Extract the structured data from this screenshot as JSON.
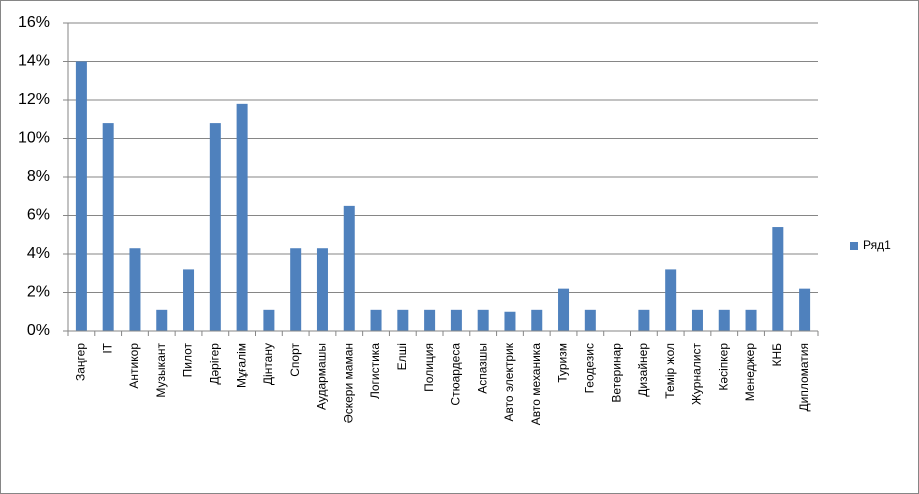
{
  "chart_data": {
    "type": "bar",
    "categories": [
      "Заңгер",
      "IT",
      "Антикор",
      "Музыкант",
      "Пилот",
      "Дәрігер",
      "Мұғалім",
      "Дінтану",
      "Спорт",
      "Аудармашы",
      "Әскери маман",
      "Логистика",
      "Елші",
      "Полиция",
      "Стюардеса",
      "Аспазшы",
      "Авто электрик",
      "Авто механика",
      "Туризм",
      "Геодезис",
      "Ветеринар",
      "Дизайнер",
      "Темір жол",
      "Журналист",
      "Кәсіпкер",
      "Менеджер",
      "КНБ",
      "Дипломатия"
    ],
    "series": [
      {
        "name": "Ряд1",
        "color": "#4f81bd",
        "values": [
          14,
          10.8,
          4.3,
          1.1,
          3.2,
          10.8,
          11.8,
          1.1,
          4.3,
          4.3,
          6.5,
          1.1,
          1.1,
          1.1,
          1.1,
          1.1,
          1.0,
          1.1,
          2.2,
          1.1,
          0,
          1.1,
          3.2,
          1.1,
          1.1,
          1.1,
          5.4,
          2.2
        ]
      }
    ],
    "ylim": [
      0,
      16
    ],
    "yticks": [
      {
        "value": 0,
        "label": "0%"
      },
      {
        "value": 2,
        "label": "2%"
      },
      {
        "value": 4,
        "label": "4%"
      },
      {
        "value": 6,
        "label": "6%"
      },
      {
        "value": 8,
        "label": "8%"
      },
      {
        "value": 10,
        "label": "10%"
      },
      {
        "value": 12,
        "label": "12%"
      },
      {
        "value": 14,
        "label": "14%"
      },
      {
        "value": 16,
        "label": "16%"
      }
    ],
    "grid": true,
    "legend": "right"
  }
}
